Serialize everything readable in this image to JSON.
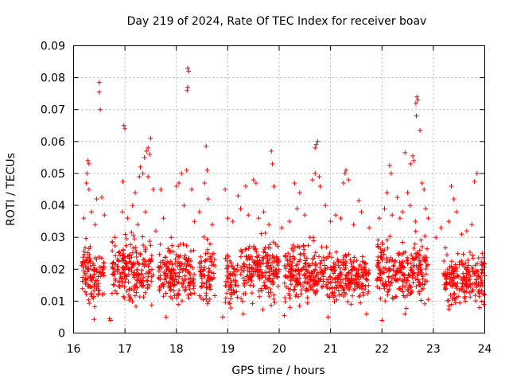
{
  "chart_data": {
    "type": "scatter",
    "title": "Day 219 of 2024, Rate Of TEC Index for receiver boav",
    "xlabel": "GPS time / hours",
    "ylabel": "ROTI / TECUs",
    "xlim": [
      16,
      24
    ],
    "ylim": [
      0,
      0.09
    ],
    "x_ticks": [
      "16",
      "17",
      "18",
      "19",
      "20",
      "21",
      "22",
      "23",
      "24"
    ],
    "y_ticks": [
      "0",
      "0.01",
      "0.02",
      "0.03",
      "0.04",
      "0.05",
      "0.06",
      "0.07",
      "0.08",
      "0.09"
    ],
    "grid": true,
    "marker": "+",
    "series_color": "#ff0000",
    "series": [
      {
        "name": "ROTI",
        "points": [
          [
            16.5,
            0.0785
          ],
          [
            16.5,
            0.0755
          ],
          [
            16.52,
            0.07
          ],
          [
            16.98,
            0.065
          ],
          [
            17.0,
            0.064
          ],
          [
            18.22,
            0.083
          ],
          [
            18.24,
            0.082
          ],
          [
            18.22,
            0.077
          ],
          [
            18.21,
            0.076
          ],
          [
            22.68,
            0.074
          ],
          [
            22.7,
            0.073
          ],
          [
            22.66,
            0.072
          ],
          [
            22.67,
            0.068
          ],
          [
            22.74,
            0.0635
          ],
          [
            17.5,
            0.061
          ],
          [
            17.45,
            0.058
          ],
          [
            17.42,
            0.057
          ],
          [
            17.48,
            0.056
          ],
          [
            17.38,
            0.055
          ],
          [
            18.58,
            0.0585
          ],
          [
            20.75,
            0.06
          ],
          [
            20.72,
            0.059
          ],
          [
            20.7,
            0.058
          ],
          [
            16.28,
            0.054
          ],
          [
            16.3,
            0.053
          ],
          [
            16.26,
            0.05
          ],
          [
            17.3,
            0.052
          ],
          [
            17.35,
            0.05
          ],
          [
            17.28,
            0.049
          ],
          [
            17.45,
            0.049
          ],
          [
            18.1,
            0.05
          ],
          [
            18.2,
            0.051
          ],
          [
            18.6,
            0.051
          ],
          [
            19.85,
            0.057
          ],
          [
            19.87,
            0.053
          ],
          [
            21.3,
            0.051
          ],
          [
            21.28,
            0.05
          ],
          [
            22.15,
            0.0525
          ],
          [
            22.18,
            0.05
          ],
          [
            22.6,
            0.0555
          ],
          [
            22.62,
            0.054
          ],
          [
            22.56,
            0.053
          ],
          [
            22.45,
            0.0565
          ],
          [
            23.85,
            0.05
          ],
          [
            20.7,
            0.05
          ],
          [
            20.78,
            0.049
          ],
          [
            16.25,
            0.047
          ],
          [
            16.3,
            0.045
          ],
          [
            16.45,
            0.042
          ],
          [
            16.55,
            0.0425
          ],
          [
            16.96,
            0.0475
          ],
          [
            17.2,
            0.044
          ],
          [
            17.55,
            0.045
          ],
          [
            17.7,
            0.045
          ],
          [
            18.0,
            0.046
          ],
          [
            18.05,
            0.047
          ],
          [
            18.3,
            0.045
          ],
          [
            18.55,
            0.047
          ],
          [
            18.95,
            0.045
          ],
          [
            19.2,
            0.043
          ],
          [
            19.35,
            0.046
          ],
          [
            19.5,
            0.048
          ],
          [
            19.55,
            0.047
          ],
          [
            19.9,
            0.046
          ],
          [
            20.3,
            0.047
          ],
          [
            20.4,
            0.044
          ],
          [
            20.65,
            0.048
          ],
          [
            20.8,
            0.046
          ],
          [
            21.25,
            0.047
          ],
          [
            21.35,
            0.048
          ],
          [
            21.55,
            0.0415
          ],
          [
            22.1,
            0.044
          ],
          [
            22.3,
            0.0425
          ],
          [
            22.5,
            0.044
          ],
          [
            22.78,
            0.047
          ],
          [
            22.82,
            0.045
          ],
          [
            23.35,
            0.046
          ],
          [
            23.4,
            0.042
          ],
          [
            23.8,
            0.0475
          ],
          [
            16.2,
            0.036
          ],
          [
            16.35,
            0.038
          ],
          [
            16.42,
            0.034
          ],
          [
            16.6,
            0.037
          ],
          [
            16.8,
            0.03
          ],
          [
            16.95,
            0.038
          ],
          [
            17.05,
            0.036
          ],
          [
            17.15,
            0.04
          ],
          [
            17.25,
            0.034
          ],
          [
            17.4,
            0.038
          ],
          [
            17.6,
            0.032
          ],
          [
            17.75,
            0.036
          ],
          [
            17.9,
            0.03
          ],
          [
            18.15,
            0.04
          ],
          [
            18.35,
            0.035
          ],
          [
            18.45,
            0.038
          ],
          [
            18.62,
            0.042
          ],
          [
            18.7,
            0.034
          ],
          [
            19.0,
            0.036
          ],
          [
            19.1,
            0.035
          ],
          [
            19.25,
            0.039
          ],
          [
            19.4,
            0.037
          ],
          [
            19.6,
            0.036
          ],
          [
            19.7,
            0.038
          ],
          [
            19.8,
            0.034
          ],
          [
            20.05,
            0.033
          ],
          [
            20.2,
            0.035
          ],
          [
            20.35,
            0.039
          ],
          [
            20.5,
            0.037
          ],
          [
            20.6,
            0.03
          ],
          [
            20.9,
            0.04
          ],
          [
            21.0,
            0.035
          ],
          [
            21.1,
            0.037
          ],
          [
            21.2,
            0.036
          ],
          [
            21.45,
            0.034
          ],
          [
            21.6,
            0.038
          ],
          [
            21.75,
            0.033
          ],
          [
            21.95,
            0.036
          ],
          [
            22.05,
            0.039
          ],
          [
            22.2,
            0.037
          ],
          [
            22.35,
            0.036
          ],
          [
            22.4,
            0.038
          ],
          [
            22.55,
            0.04
          ],
          [
            22.65,
            0.035
          ],
          [
            22.85,
            0.039
          ],
          [
            22.9,
            0.036
          ],
          [
            23.05,
            0.03
          ],
          [
            23.15,
            0.033
          ],
          [
            23.3,
            0.035
          ],
          [
            23.45,
            0.038
          ],
          [
            23.55,
            0.031
          ],
          [
            23.65,
            0.032
          ],
          [
            23.75,
            0.034
          ],
          [
            23.95,
            0.025
          ],
          [
            16.4,
            0.0043
          ],
          [
            16.7,
            0.0045
          ],
          [
            16.72,
            0.004
          ],
          [
            17.8,
            0.005
          ],
          [
            18.9,
            0.005
          ],
          [
            19.3,
            0.006
          ],
          [
            20.1,
            0.0055
          ],
          [
            20.95,
            0.005
          ],
          [
            21.7,
            0.006
          ],
          [
            22.0,
            0.004
          ],
          [
            22.45,
            0.006
          ],
          [
            23.3,
            0.0075
          ],
          [
            23.9,
            0.008
          ]
        ],
        "dense_clusters": [
          {
            "x_range": [
              16.15,
              16.6
            ],
            "y_range": [
              0.006,
              0.028
            ]
          },
          {
            "x_range": [
              16.75,
              17.55
            ],
            "y_range": [
              0.006,
              0.03
            ]
          },
          {
            "x_range": [
              17.65,
              18.35
            ],
            "y_range": [
              0.006,
              0.027
            ]
          },
          {
            "x_range": [
              18.45,
              18.75
            ],
            "y_range": [
              0.006,
              0.028
            ]
          },
          {
            "x_range": [
              18.95,
              19.2
            ],
            "y_range": [
              0.006,
              0.025
            ]
          },
          {
            "x_range": [
              19.25,
              20.0
            ],
            "y_range": [
              0.006,
              0.03
            ]
          },
          {
            "x_range": [
              20.1,
              20.95
            ],
            "y_range": [
              0.006,
              0.028
            ]
          },
          {
            "x_range": [
              20.95,
              21.3
            ],
            "y_range": [
              0.006,
              0.026
            ]
          },
          {
            "x_range": [
              21.3,
              21.75
            ],
            "y_range": [
              0.007,
              0.025
            ]
          },
          {
            "x_range": [
              21.9,
              22.9
            ],
            "y_range": [
              0.006,
              0.03
            ]
          },
          {
            "x_range": [
              23.2,
              24.0
            ],
            "y_range": [
              0.006,
              0.025
            ]
          }
        ]
      }
    ]
  }
}
